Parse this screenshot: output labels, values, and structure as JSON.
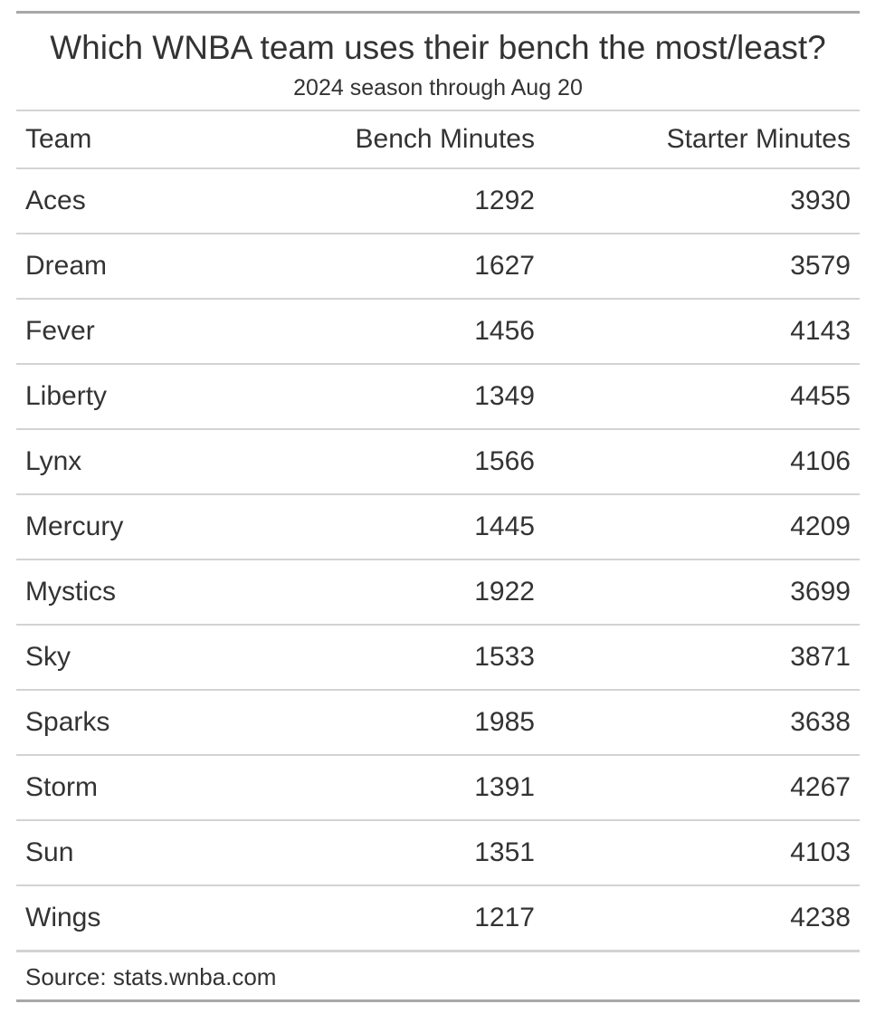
{
  "chart_data": {
    "type": "table",
    "title": "Which WNBA team uses their bench the most/least?",
    "subtitle": "2024 season through Aug 20",
    "columns": [
      "Team",
      "Bench Minutes",
      "Starter Minutes"
    ],
    "rows": [
      [
        "Aces",
        "1292",
        "3930"
      ],
      [
        "Dream",
        "1627",
        "3579"
      ],
      [
        "Fever",
        "1456",
        "4143"
      ],
      [
        "Liberty",
        "1349",
        "4455"
      ],
      [
        "Lynx",
        "1566",
        "4106"
      ],
      [
        "Mercury",
        "1445",
        "4209"
      ],
      [
        "Mystics",
        "1922",
        "3699"
      ],
      [
        "Sky",
        "1533",
        "3871"
      ],
      [
        "Sparks",
        "1985",
        "3638"
      ],
      [
        "Storm",
        "1391",
        "4267"
      ],
      [
        "Sun",
        "1351",
        "4103"
      ],
      [
        "Wings",
        "1217",
        "4238"
      ]
    ],
    "source": "Source: stats.wnba.com"
  }
}
